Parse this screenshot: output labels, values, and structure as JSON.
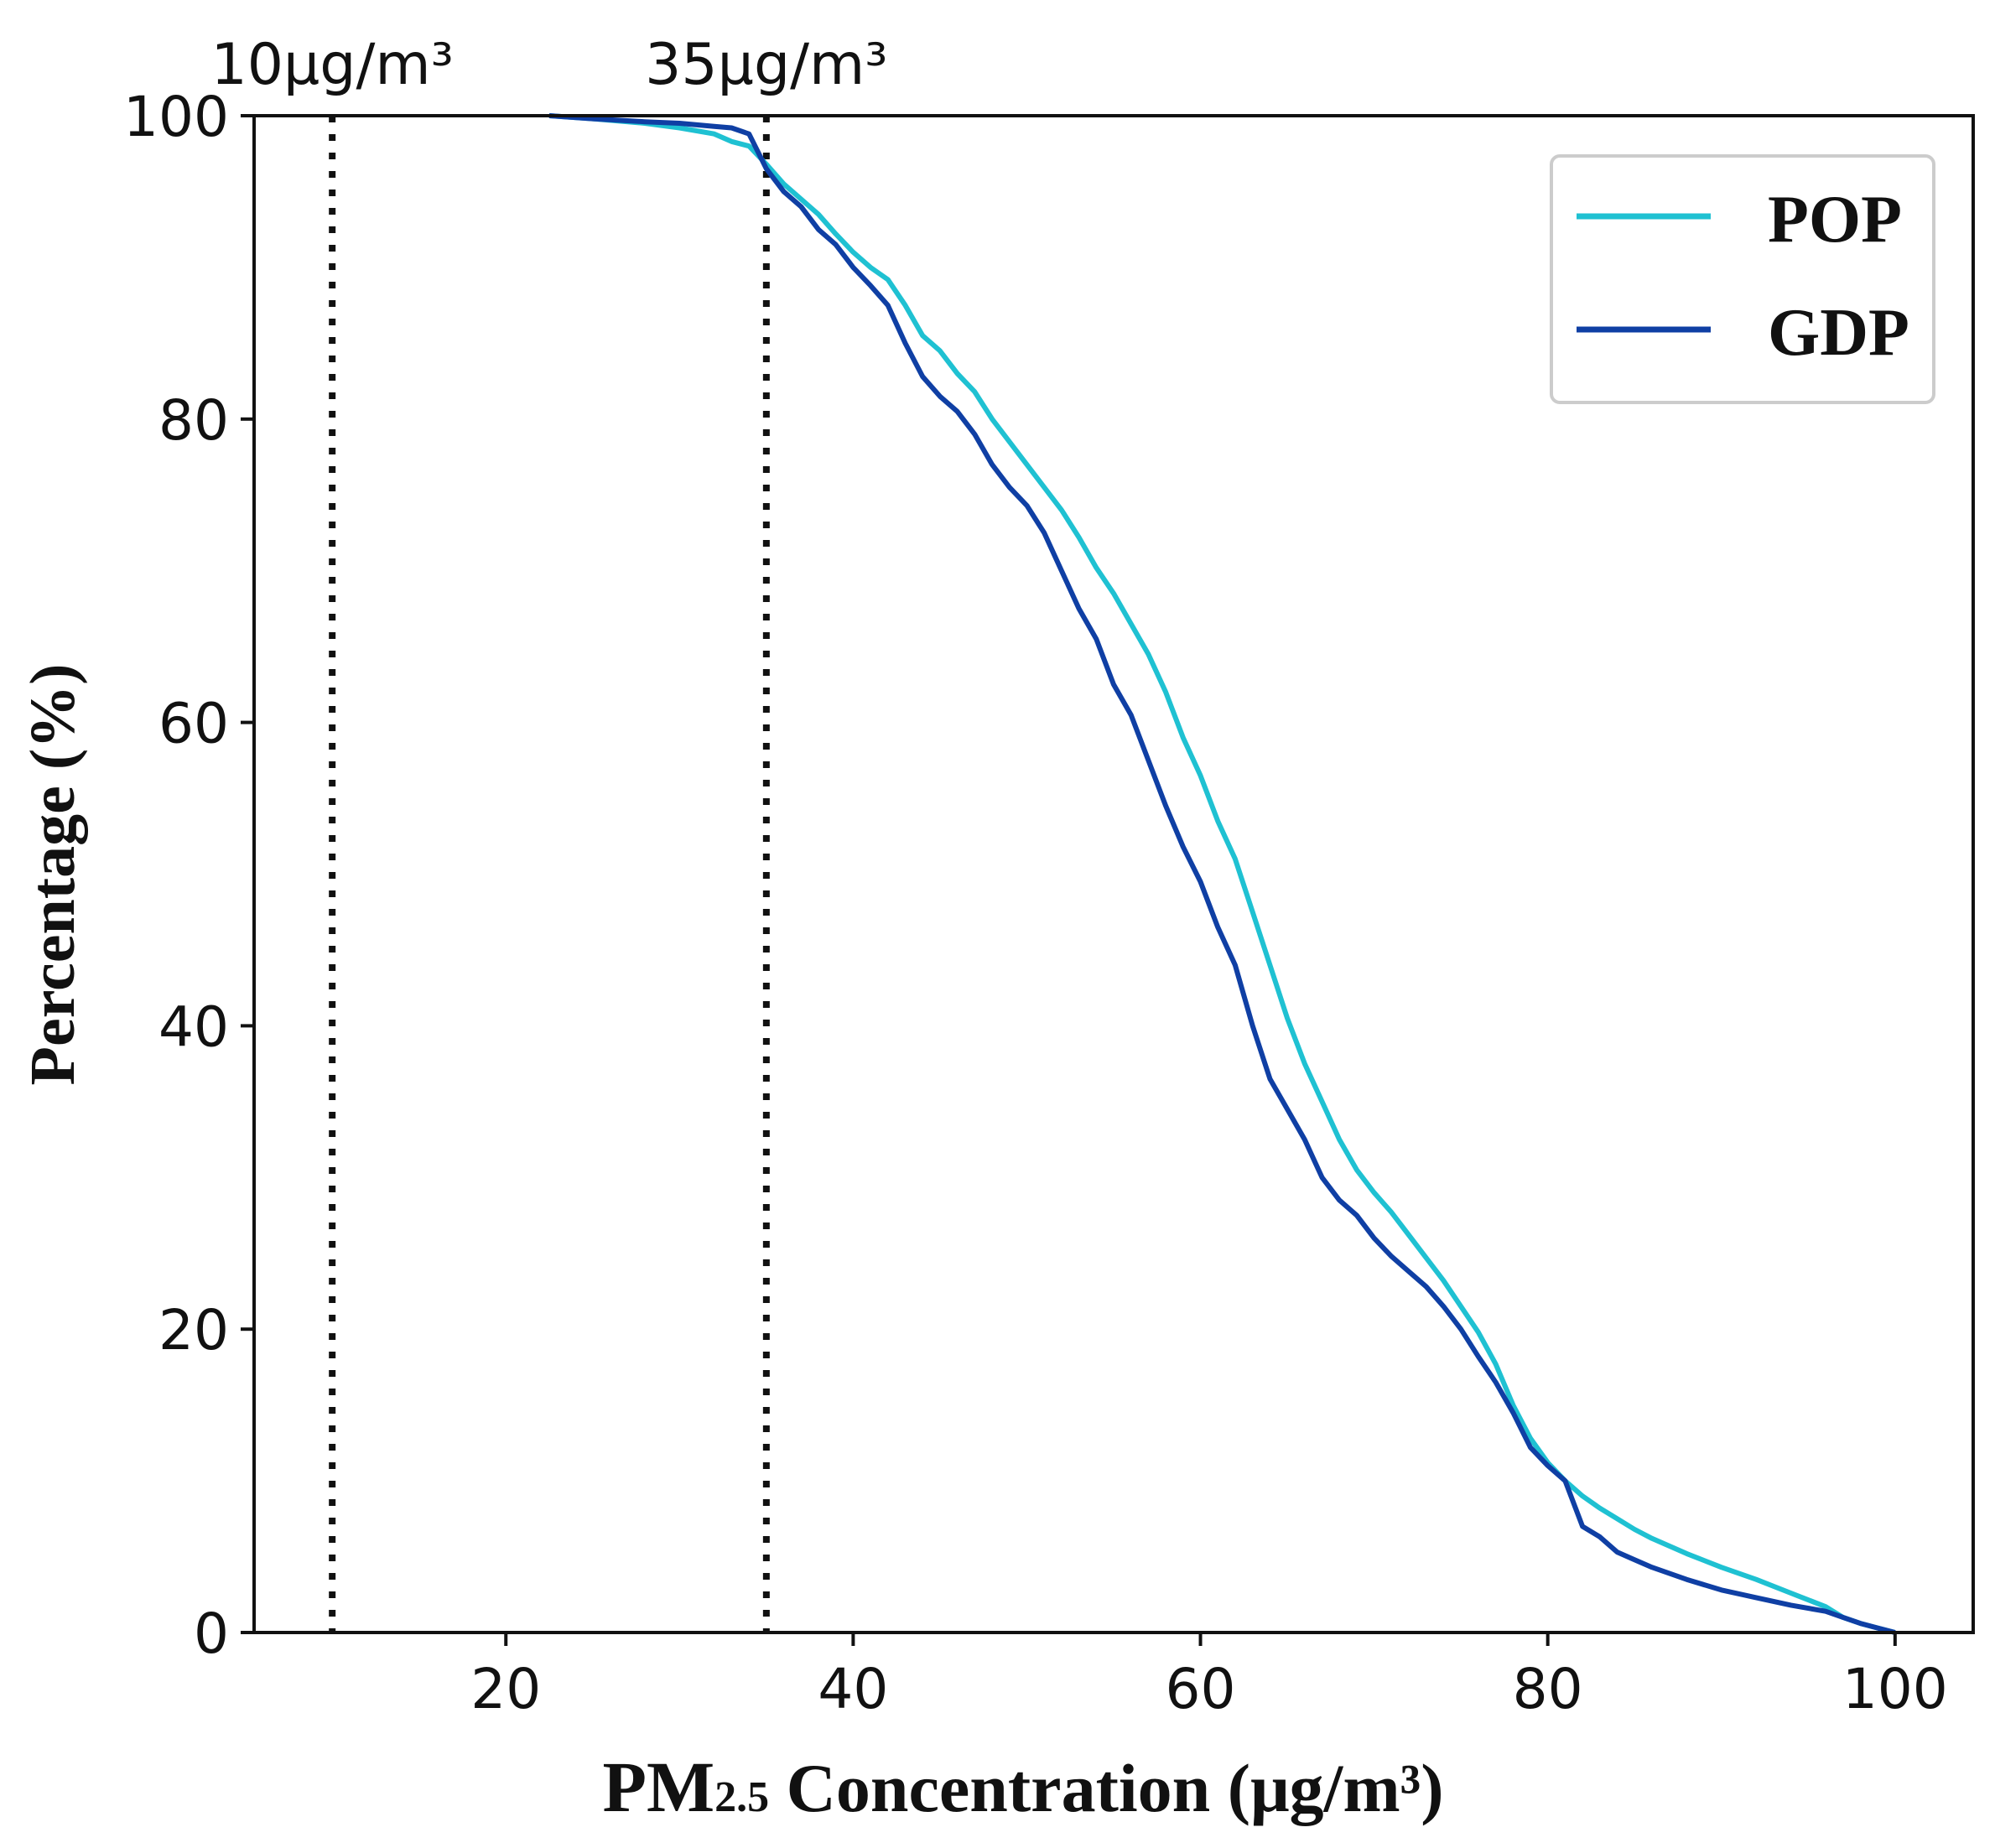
{
  "chart_data": {
    "type": "line",
    "title": "",
    "xlabel": {
      "main": "PM",
      "subscript": "2.5",
      "rest": " Concentration (μg/m³)"
    },
    "ylabel": "Percentage (%)",
    "xlim": [
      5.5,
      104.5
    ],
    "ylim": [
      0,
      100
    ],
    "xticks": [
      20,
      40,
      60,
      80,
      100
    ],
    "yticks": [
      0,
      20,
      40,
      60,
      80,
      100
    ],
    "grid": false,
    "legend_position": "top-right",
    "reference_lines": [
      {
        "x": 10,
        "label": "10μg/m³",
        "style": "dotted"
      },
      {
        "x": 35,
        "label": "35μg/m³",
        "style": "dotted"
      }
    ],
    "series": [
      {
        "name": "POP",
        "color": "#1fc1d2",
        "x": [
          22.5,
          25,
          28,
          30,
          32,
          33,
          34,
          35,
          36,
          37,
          38,
          39,
          40,
          41,
          42,
          43,
          44,
          45,
          46,
          47,
          48,
          49,
          50,
          51,
          52,
          53,
          54,
          55,
          56,
          57,
          58,
          59,
          60,
          61,
          62,
          63,
          64,
          65,
          66,
          67,
          68,
          69,
          70,
          71,
          72,
          73,
          74,
          75,
          76,
          77,
          78,
          79,
          80,
          81,
          82,
          83,
          84,
          85,
          86,
          88,
          90,
          92,
          94,
          96,
          97,
          98,
          99,
          100
        ],
        "y": [
          100,
          99.8,
          99.5,
          99.2,
          98.8,
          98.3,
          98,
          96.8,
          95.5,
          94.5,
          93.5,
          92.2,
          91,
          90,
          89.2,
          87.5,
          85.5,
          84.5,
          83,
          81.8,
          80,
          78.5,
          77,
          75.5,
          74,
          72.2,
          70.2,
          68.5,
          66.5,
          64.5,
          62,
          59,
          56.5,
          53.5,
          51,
          47.5,
          44,
          40.5,
          37.5,
          35,
          32.5,
          30.5,
          29,
          27.7,
          26.2,
          24.7,
          23.2,
          21.5,
          19.8,
          17.7,
          15,
          12.8,
          11.2,
          10,
          9,
          8.2,
          7.5,
          6.8,
          6.2,
          5.2,
          4.3,
          3.5,
          2.6,
          1.7,
          1.0,
          0.6,
          0.3,
          0
        ]
      },
      {
        "name": "GDP",
        "color": "#0f3fa4",
        "x": [
          22.5,
          25,
          28,
          30,
          32,
          33,
          34,
          35,
          36,
          37,
          38,
          39,
          40,
          41,
          42,
          43,
          44,
          45,
          46,
          47,
          48,
          49,
          50,
          51,
          52,
          53,
          54,
          55,
          56,
          57,
          58,
          59,
          60,
          61,
          62,
          63,
          64,
          65,
          66,
          67,
          68,
          69,
          70,
          71,
          72,
          73,
          74,
          75,
          76,
          77,
          78,
          79,
          80,
          81,
          82,
          83,
          84,
          85,
          86,
          88,
          90,
          92,
          94,
          96,
          97,
          98,
          99,
          100
        ],
        "y": [
          100,
          99.8,
          99.6,
          99.5,
          99.3,
          99.2,
          98.8,
          96.5,
          95,
          94,
          92.5,
          91.5,
          90,
          88.8,
          87.5,
          85,
          82.8,
          81.5,
          80.5,
          79,
          77,
          75.5,
          74.3,
          72.5,
          70,
          67.5,
          65.5,
          62.5,
          60.5,
          57.5,
          54.5,
          51.8,
          49.5,
          46.5,
          44,
          40,
          36.5,
          34.5,
          32.5,
          30,
          28.5,
          27.5,
          26,
          24.8,
          23.8,
          22.8,
          21.5,
          20,
          18.2,
          16.5,
          14.5,
          12.2,
          11,
          10,
          7,
          6.3,
          5.3,
          4.8,
          4.3,
          3.5,
          2.8,
          2.3,
          1.8,
          1.4,
          1.0,
          0.6,
          0.3,
          0
        ]
      }
    ]
  }
}
